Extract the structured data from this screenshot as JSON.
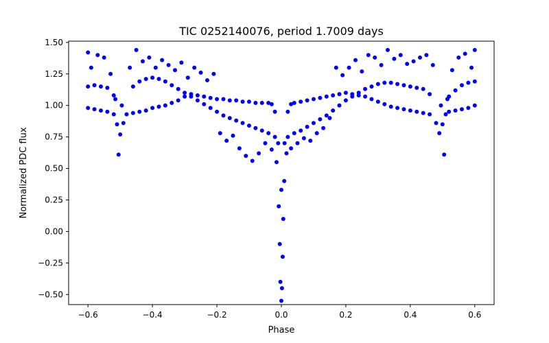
{
  "chart_data": {
    "type": "scatter",
    "title": "TIC 0252140076, period 1.7009 days",
    "xlabel": "Phase",
    "ylabel": "Normalized PDC flux",
    "xlim": [
      -0.66,
      0.66
    ],
    "ylim": [
      -0.58,
      1.51
    ],
    "xticks": [
      -0.6,
      -0.4,
      -0.2,
      0.0,
      0.2,
      0.4,
      0.6
    ],
    "xtick_labels": [
      "−0.6",
      "−0.4",
      "−0.2",
      "0.0",
      "0.2",
      "0.4",
      "0.6"
    ],
    "yticks": [
      -0.5,
      -0.25,
      0.0,
      0.25,
      0.5,
      0.75,
      1.0,
      1.25,
      1.5
    ],
    "ytick_labels": [
      "−0.50",
      "−0.25",
      "0.00",
      "0.25",
      "0.50",
      "0.75",
      "1.00",
      "1.25",
      "1.50"
    ],
    "grid": false,
    "legend": "none",
    "marker_color": "#0000ff",
    "series": [
      {
        "x": [
          -0.6,
          -0.58,
          -0.56,
          -0.54,
          -0.52,
          -0.51,
          -0.5,
          -0.49,
          -0.48,
          -0.46,
          -0.44,
          -0.42,
          -0.4,
          -0.38,
          -0.36,
          -0.34,
          -0.32,
          -0.3,
          -0.28,
          -0.26,
          -0.24,
          -0.22,
          -0.2,
          -0.18,
          -0.16,
          -0.14,
          -0.12,
          -0.1,
          -0.08,
          -0.06,
          -0.04,
          -0.03,
          -0.02,
          -0.01,
          0.0,
          0.01,
          0.02,
          0.03,
          0.04,
          0.06,
          0.08,
          0.1,
          0.12,
          0.14,
          0.16,
          0.18,
          0.2,
          0.22,
          0.24,
          0.26,
          0.28,
          0.3,
          0.32,
          0.34,
          0.36,
          0.38,
          0.4,
          0.42,
          0.44,
          0.46,
          0.48,
          0.49,
          0.5,
          0.51,
          0.52,
          0.54,
          0.56,
          0.58,
          0.6
        ],
        "y": [
          0.98,
          0.97,
          0.96,
          0.95,
          0.93,
          0.85,
          0.77,
          0.86,
          0.93,
          0.94,
          0.95,
          0.96,
          0.98,
          0.99,
          1.0,
          1.02,
          1.04,
          1.07,
          1.09,
          1.08,
          1.07,
          1.06,
          1.05,
          1.05,
          1.04,
          1.04,
          1.03,
          1.03,
          1.02,
          1.02,
          1.02,
          1.01,
          0.95,
          0.7,
          0.33,
          0.7,
          0.95,
          1.01,
          1.02,
          1.03,
          1.04,
          1.05,
          1.06,
          1.07,
          1.08,
          1.09,
          1.1,
          1.09,
          1.08,
          1.07,
          1.05,
          1.03,
          1.01,
          0.99,
          0.98,
          0.97,
          0.96,
          0.95,
          0.94,
          0.93,
          0.86,
          0.78,
          0.85,
          0.93,
          0.95,
          0.96,
          0.97,
          0.98,
          1.0
        ]
      },
      {
        "x": [
          -0.6,
          -0.58,
          -0.56,
          -0.54,
          -0.52,
          -0.46,
          -0.44,
          -0.42,
          -0.4,
          -0.38,
          -0.36,
          -0.34,
          -0.32,
          -0.3,
          -0.28,
          -0.26,
          -0.24,
          -0.22,
          -0.2,
          -0.18,
          -0.16,
          -0.14,
          -0.12,
          -0.1,
          -0.08,
          -0.06,
          -0.04,
          -0.02,
          0.02,
          0.04,
          0.06,
          0.08,
          0.1,
          0.12,
          0.14,
          0.16,
          0.18,
          0.2,
          0.22,
          0.24,
          0.26,
          0.28,
          0.3,
          0.32,
          0.34,
          0.36,
          0.38,
          0.4,
          0.42,
          0.44,
          0.46,
          0.52,
          0.54,
          0.56,
          0.58,
          0.6
        ],
        "y": [
          1.15,
          1.16,
          1.15,
          1.14,
          1.08,
          1.15,
          1.19,
          1.21,
          1.22,
          1.21,
          1.19,
          1.16,
          1.13,
          1.1,
          1.07,
          1.04,
          1.01,
          0.98,
          0.95,
          0.92,
          0.9,
          0.88,
          0.86,
          0.84,
          0.82,
          0.8,
          0.78,
          0.75,
          0.75,
          0.78,
          0.8,
          0.83,
          0.86,
          0.89,
          0.92,
          0.96,
          1.0,
          1.04,
          1.07,
          1.1,
          1.13,
          1.15,
          1.17,
          1.18,
          1.18,
          1.17,
          1.16,
          1.15,
          1.14,
          1.13,
          1.09,
          1.07,
          1.12,
          1.16,
          1.18,
          1.19
        ]
      },
      {
        "x": [
          -0.6,
          -0.59,
          -0.57,
          -0.55,
          -0.53,
          -0.515,
          -0.505,
          -0.495,
          -0.47,
          -0.45,
          -0.43,
          -0.41,
          -0.39,
          -0.37,
          -0.35,
          -0.33,
          -0.31,
          -0.29,
          -0.27,
          -0.25,
          -0.23,
          -0.21,
          -0.19,
          -0.17,
          -0.15,
          -0.13,
          -0.11,
          -0.09,
          -0.07,
          -0.05,
          -0.03,
          -0.015,
          -0.008,
          -0.005,
          -0.003,
          0.0,
          0.002,
          0.004,
          0.006,
          0.009,
          0.016,
          0.03,
          0.05,
          0.07,
          0.09,
          0.11,
          0.13,
          0.15,
          0.17,
          0.19,
          0.21,
          0.23,
          0.25,
          0.27,
          0.29,
          0.31,
          0.33,
          0.35,
          0.37,
          0.39,
          0.41,
          0.43,
          0.45,
          0.47,
          0.495,
          0.505,
          0.515,
          0.53,
          0.55,
          0.57,
          0.59,
          0.6
        ],
        "y": [
          1.42,
          1.3,
          1.4,
          1.38,
          1.25,
          1.05,
          0.61,
          1.0,
          1.3,
          1.44,
          1.35,
          1.38,
          1.3,
          1.36,
          1.32,
          1.28,
          1.34,
          1.22,
          1.3,
          1.26,
          1.2,
          1.25,
          0.78,
          0.72,
          0.76,
          0.66,
          0.6,
          0.56,
          0.62,
          0.7,
          0.65,
          0.55,
          0.2,
          -0.1,
          -0.4,
          -0.55,
          -0.45,
          -0.2,
          0.1,
          0.4,
          0.62,
          0.66,
          0.7,
          0.74,
          0.72,
          0.78,
          0.82,
          0.9,
          1.3,
          1.24,
          1.3,
          1.36,
          1.27,
          1.4,
          1.38,
          1.32,
          1.44,
          1.37,
          1.4,
          1.33,
          1.35,
          1.38,
          1.4,
          1.32,
          1.0,
          0.61,
          1.05,
          1.28,
          1.38,
          1.41,
          1.3,
          1.44
        ]
      }
    ]
  }
}
